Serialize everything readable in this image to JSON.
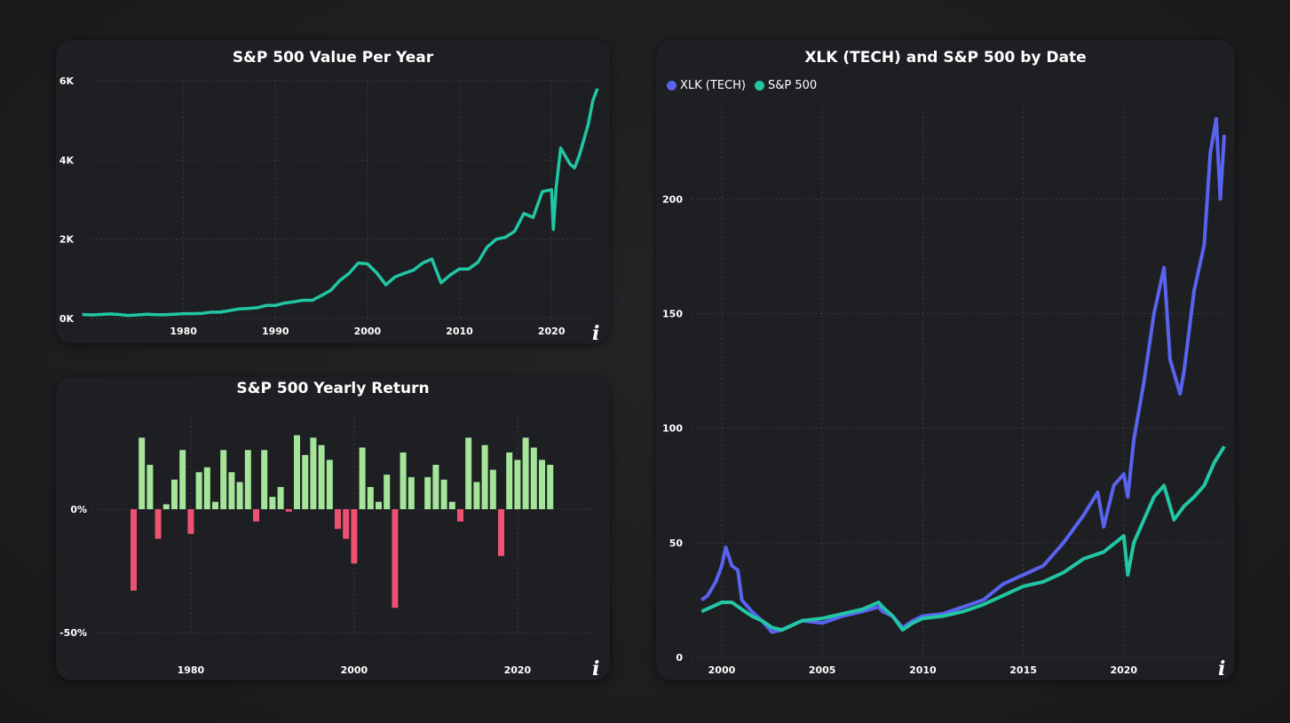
{
  "colors": {
    "sp_line": "#21c7a4",
    "xlk_line": "#5a63f0",
    "bar_positive": "#a4e59a",
    "bar_negative": "#ec5272",
    "axis_text": "#ffffff",
    "grid": "#3a3b41"
  },
  "icons": {
    "info": "info-icon"
  },
  "card1": {
    "title": "S&P 500 Value Per Year",
    "info": "i"
  },
  "card2": {
    "title": "S&P 500 Yearly Return",
    "info": "i"
  },
  "card3": {
    "title": "XLK (TECH) and S&P 500 by Date",
    "info": "i",
    "legend": [
      {
        "name": "XLK (TECH)",
        "color": "#5a63f0"
      },
      {
        "name": "S&P 500",
        "color": "#21c7a4"
      }
    ]
  },
  "chart_data": [
    {
      "type": "line",
      "title": "S&P 500 Value Per Year",
      "xlabel": "",
      "ylabel": "",
      "xlim": [
        1970,
        2025
      ],
      "ylim": [
        0,
        6000
      ],
      "yticks": [
        0,
        2000,
        4000,
        6000
      ],
      "ytick_labels": [
        "0K",
        "2K",
        "4K",
        "6K"
      ],
      "xticks": [
        1980,
        1990,
        2000,
        2010,
        2020
      ],
      "xtick_labels": [
        "1980",
        "1990",
        "2000",
        "2010",
        "2020"
      ],
      "grid": true,
      "series": [
        {
          "x": [
            1969,
            1970,
            1971,
            1972,
            1973,
            1974,
            1975,
            1976,
            1977,
            1978,
            1979,
            1980,
            1981,
            1982,
            1983,
            1984,
            1985,
            1986,
            1987,
            1988,
            1989,
            1990,
            1991,
            1992,
            1993,
            1994,
            1995,
            1996,
            1997,
            1998,
            1999,
            2000,
            2001,
            2002,
            2003,
            2004,
            2005,
            2006,
            2007,
            2008,
            2009,
            2010,
            2011,
            2012,
            2013,
            2014,
            2015,
            2016,
            2017,
            2018,
            2019,
            2020,
            2020.2,
            2020.5,
            2021,
            2022,
            2022.5,
            2023,
            2023.5,
            2024,
            2024.5,
            2025
          ],
          "values": [
            100,
            90,
            100,
            115,
            100,
            75,
            90,
            105,
            95,
            95,
            105,
            120,
            120,
            130,
            160,
            160,
            200,
            240,
            250,
            270,
            330,
            330,
            390,
            420,
            460,
            460,
            580,
            710,
            960,
            1140,
            1400,
            1380,
            1150,
            850,
            1050,
            1140,
            1220,
            1400,
            1500,
            900,
            1100,
            1250,
            1250,
            1420,
            1800,
            2000,
            2050,
            2200,
            2650,
            2550,
            3200,
            3250,
            2250,
            3300,
            4300,
            3900,
            3800,
            4100,
            4500,
            4900,
            5500,
            5800
          ]
        }
      ]
    },
    {
      "type": "bar",
      "title": "S&P 500 Yearly Return",
      "xlabel": "",
      "ylabel": "",
      "ylim": [
        -50,
        35
      ],
      "yticks": [
        -50,
        0
      ],
      "ytick_labels": [
        "-50%",
        "0%"
      ],
      "xticks": [
        1980,
        2000,
        2020
      ],
      "xtick_labels": [
        "1980",
        "2000",
        "2020"
      ],
      "grid": true,
      "categories": [
        1973,
        1974,
        1975,
        1976,
        1977,
        1978,
        1979,
        1980,
        1981,
        1982,
        1983,
        1984,
        1985,
        1986,
        1987,
        1988,
        1989,
        1990,
        1991,
        1992,
        1993,
        1994,
        1995,
        1996,
        1997,
        1998,
        1999,
        2000,
        2001,
        2002,
        2003,
        2004,
        2005,
        2006,
        2007,
        2008,
        2009,
        2010,
        2011,
        2012,
        2013,
        2014,
        2015,
        2016,
        2017,
        2018,
        2019,
        2020,
        2021,
        2022,
        2023,
        2024
      ],
      "values": [
        -33,
        29,
        18,
        -12,
        2,
        12,
        24,
        -10,
        15,
        17,
        3,
        24,
        15,
        11,
        24,
        -5,
        24,
        5,
        9,
        -1,
        30,
        22,
        29,
        26,
        20,
        -8,
        -12,
        -22,
        25,
        9,
        3,
        14,
        -40,
        23,
        13,
        0,
        13,
        18,
        12,
        3,
        -5,
        29,
        11,
        26,
        16,
        -19,
        23,
        20,
        29,
        25,
        20,
        18
      ],
      "colors_by_sign": {
        "positive": "#a4e59a",
        "negative": "#ec5272"
      }
    },
    {
      "type": "line",
      "title": "XLK (TECH) and S&P 500 by Date",
      "xlabel": "",
      "ylabel": "",
      "xlim": [
        1998.5,
        2025
      ],
      "ylim": [
        0,
        240
      ],
      "yticks": [
        0,
        50,
        100,
        150,
        200
      ],
      "ytick_labels": [
        "0",
        "50",
        "100",
        "150",
        "200"
      ],
      "xticks": [
        2000,
        2005,
        2010,
        2015,
        2020
      ],
      "xtick_labels": [
        "2000",
        "2005",
        "2010",
        "2015",
        "2020"
      ],
      "legend": "top-left",
      "grid": true,
      "series": [
        {
          "name": "XLK (TECH)",
          "x": [
            1999,
            1999.3,
            1999.7,
            2000,
            2000.2,
            2000.5,
            2000.8,
            2001,
            2001.5,
            2002,
            2002.5,
            2003,
            2003.5,
            2004,
            2005,
            2006,
            2007,
            2007.8,
            2008,
            2008.5,
            2009,
            2009.5,
            2010,
            2011,
            2012,
            2013,
            2014,
            2015,
            2016,
            2017,
            2018,
            2018.7,
            2019,
            2019.5,
            2020,
            2020.2,
            2020.5,
            2020.8,
            2021,
            2021.5,
            2022,
            2022.3,
            2022.8,
            2023,
            2023.5,
            2024,
            2024.3,
            2024.6,
            2024.8,
            2025
          ],
          "values": [
            25,
            27,
            33,
            40,
            48,
            40,
            38,
            25,
            20,
            16,
            11,
            12,
            14,
            16,
            15,
            18,
            20,
            22,
            20,
            18,
            13,
            16,
            18,
            19,
            22,
            25,
            32,
            36,
            40,
            50,
            62,
            72,
            57,
            75,
            80,
            70,
            95,
            110,
            120,
            150,
            170,
            130,
            115,
            125,
            160,
            180,
            220,
            235,
            200,
            228
          ]
        },
        {
          "name": "S&P 500",
          "x": [
            1999,
            1999.5,
            2000,
            2000.5,
            2001,
            2001.5,
            2002,
            2002.5,
            2003,
            2003.5,
            2004,
            2005,
            2006,
            2007,
            2007.8,
            2008,
            2008.5,
            2009,
            2009.5,
            2010,
            2011,
            2012,
            2013,
            2014,
            2015,
            2016,
            2017,
            2018,
            2019,
            2020,
            2020.2,
            2020.5,
            2021,
            2021.5,
            2022,
            2022.5,
            2023,
            2023.5,
            2024,
            2024.5,
            2025
          ],
          "values": [
            20,
            22,
            24,
            24,
            21,
            18,
            16,
            13,
            12,
            14,
            16,
            17,
            19,
            21,
            24,
            22,
            18,
            12,
            15,
            17,
            18,
            20,
            23,
            27,
            31,
            33,
            37,
            43,
            46,
            53,
            36,
            50,
            60,
            70,
            75,
            60,
            66,
            70,
            75,
            85,
            92
          ]
        }
      ]
    }
  ]
}
